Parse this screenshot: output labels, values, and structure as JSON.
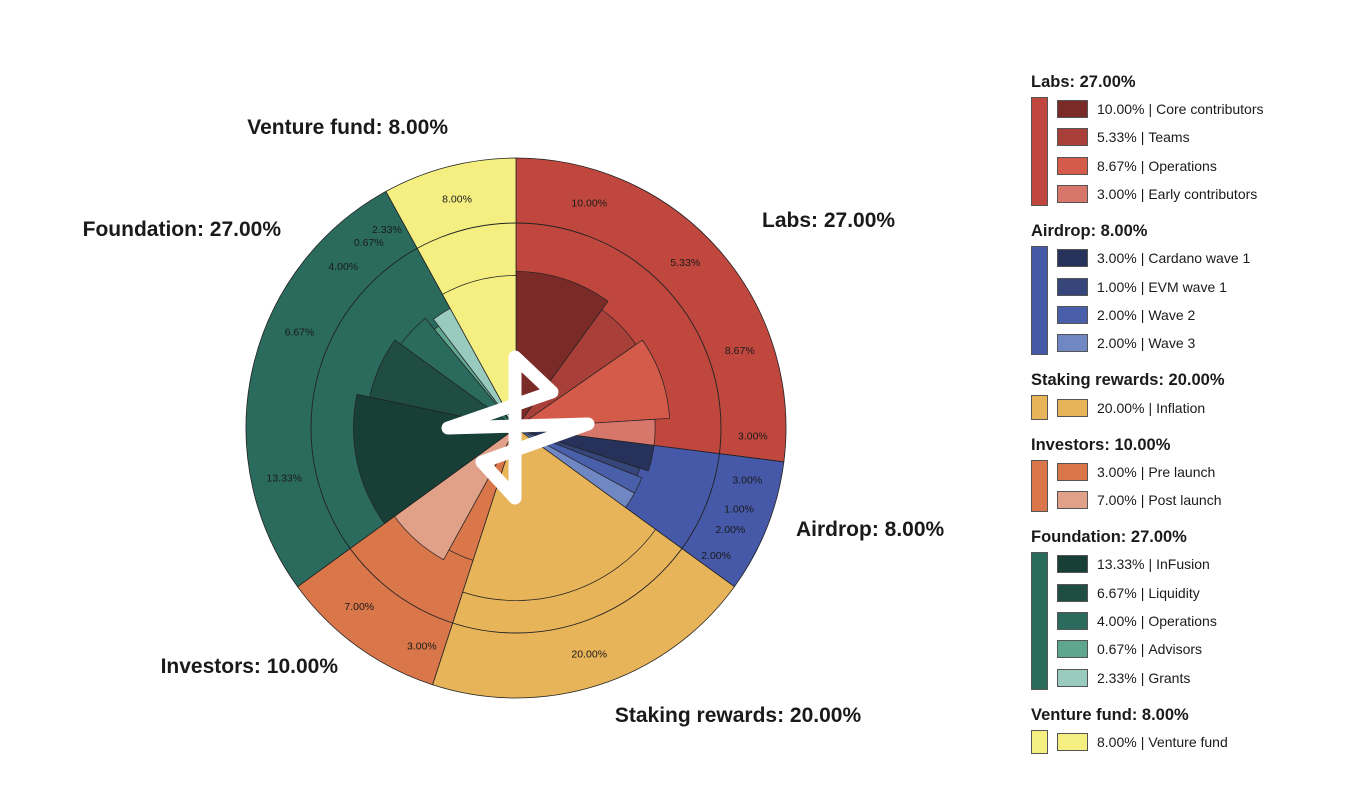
{
  "chart_data": {
    "type": "pie",
    "subtype": "nested-donut",
    "title": "",
    "groups": [
      {
        "name": "Labs",
        "label": "Labs: 27.00%",
        "value": 27.0,
        "color": "#c0473e",
        "children": [
          {
            "name": "Core contributors",
            "value": 10.0,
            "pct": "10.00%",
            "color": "#7a2a27"
          },
          {
            "name": "Teams",
            "value": 5.33,
            "pct": "5.33%",
            "color": "#a83f38"
          },
          {
            "name": "Operations",
            "value": 8.67,
            "pct": "8.67%",
            "color": "#d45a49"
          },
          {
            "name": "Early contributors",
            "value": 3.0,
            "pct": "3.00%",
            "color": "#d7766b"
          }
        ]
      },
      {
        "name": "Airdrop",
        "label": "Airdrop: 8.00%",
        "value": 8.0,
        "color": "#4658a8",
        "children": [
          {
            "name": "Cardano wave 1",
            "value": 3.0,
            "pct": "3.00%",
            "color": "#263259"
          },
          {
            "name": "EVM wave 1",
            "value": 1.0,
            "pct": "1.00%",
            "color": "#37467a"
          },
          {
            "name": "Wave 2",
            "value": 2.0,
            "pct": "2.00%",
            "color": "#4a5fa9"
          },
          {
            "name": "Wave 3",
            "value": 2.0,
            "pct": "2.00%",
            "color": "#6f87c3"
          }
        ]
      },
      {
        "name": "Staking rewards",
        "label": "Staking rewards: 20.00%",
        "value": 20.0,
        "color": "#e7b45a",
        "children": [
          {
            "name": "Inflation",
            "value": 20.0,
            "pct": "20.00%",
            "color": "#e7b45a"
          }
        ]
      },
      {
        "name": "Investors",
        "label": "Investors: 10.00%",
        "value": 10.0,
        "color": "#d9764a",
        "children": [
          {
            "name": "Pre launch",
            "value": 3.0,
            "pct": "3.00%",
            "color": "#d9764a"
          },
          {
            "name": "Post launch",
            "value": 7.0,
            "pct": "7.00%",
            "color": "#e0a188"
          }
        ]
      },
      {
        "name": "Foundation",
        "label": "Foundation: 27.00%",
        "value": 27.0,
        "color": "#2a6b5e",
        "children": [
          {
            "name": "InFusion",
            "value": 13.33,
            "pct": "13.33%",
            "color": "#173f35"
          },
          {
            "name": "Liquidity",
            "value": 6.67,
            "pct": "6.67%",
            "color": "#1f4d42"
          },
          {
            "name": "Operations",
            "value": 4.0,
            "pct": "4.00%",
            "color": "#2b6b5e"
          },
          {
            "name": "Advisors",
            "value": 0.67,
            "pct": "0.67%",
            "color": "#5ea68e"
          },
          {
            "name": "Grants",
            "value": 2.33,
            "pct": "2.33%",
            "color": "#98cbbe"
          }
        ]
      },
      {
        "name": "Venture fund",
        "label": "Venture fund: 8.00%",
        "value": 8.0,
        "color": "#f5ef82",
        "children": [
          {
            "name": "Venture fund",
            "value": 8.0,
            "pct": "8.00%",
            "color": "#f5ef82"
          }
        ]
      }
    ],
    "outer_ring_pct_labels": [
      "10.00%",
      "5.33%",
      "8.67%",
      "3.00%",
      "3.00%",
      "1.00%",
      "2.00%",
      "2.00%",
      "20.00%",
      "3.00%",
      "7.00%",
      "13.33%",
      "6.67%",
      "4.00%",
      "0.67%",
      "2.33%",
      "8.00%"
    ],
    "start_angle": "12 o'clock",
    "direction": "clockwise",
    "legend_position": "right",
    "center_icon": "infinity-logo-icon"
  }
}
